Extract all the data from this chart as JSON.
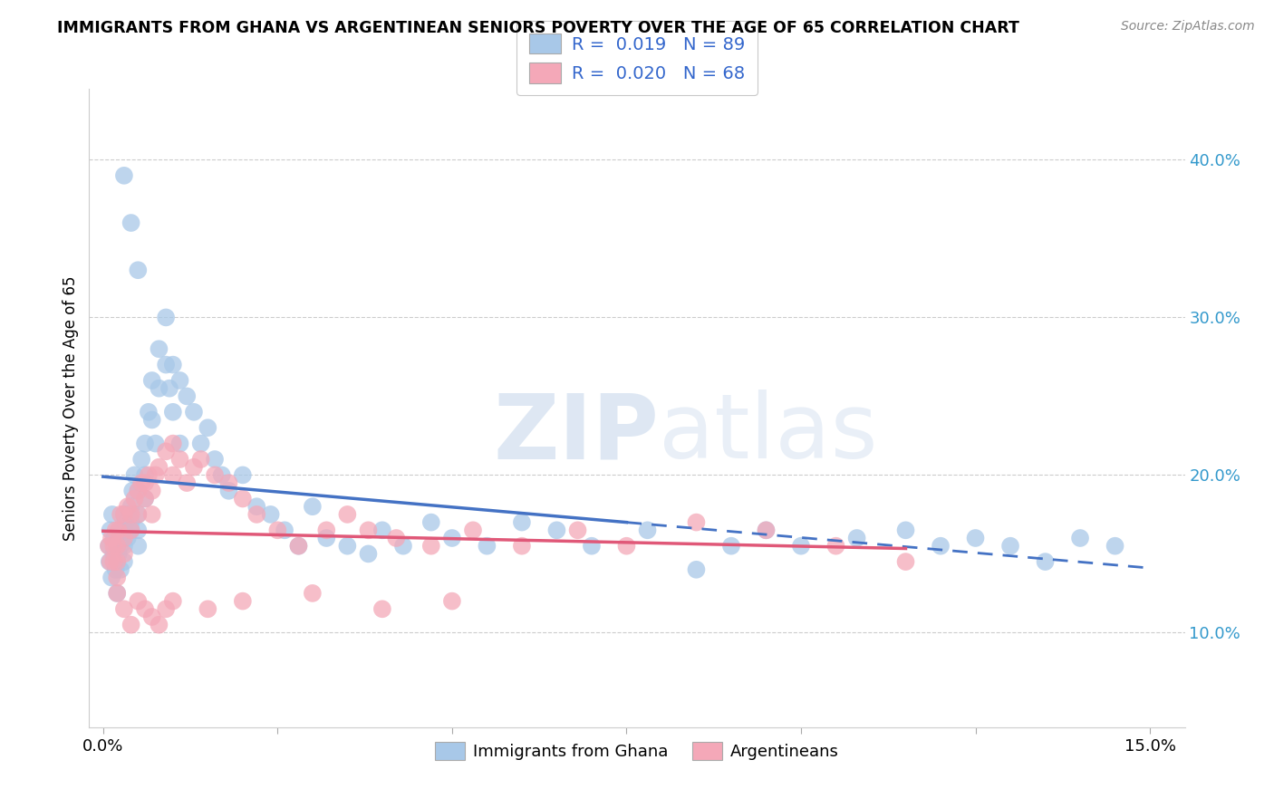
{
  "title": "IMMIGRANTS FROM GHANA VS ARGENTINEAN SENIORS POVERTY OVER THE AGE OF 65 CORRELATION CHART",
  "source": "Source: ZipAtlas.com",
  "ylabel": "Seniors Poverty Over the Age of 65",
  "yticks": [
    0.1,
    0.2,
    0.3,
    0.4
  ],
  "ytick_labels": [
    "10.0%",
    "20.0%",
    "30.0%",
    "40.0%"
  ],
  "xticks": [
    0.0,
    0.025,
    0.05,
    0.075,
    0.1,
    0.125,
    0.15
  ],
  "xtick_labels": [
    "0.0%",
    "",
    "",
    "",
    "",
    "",
    "15.0%"
  ],
  "xlim": [
    -0.002,
    0.155
  ],
  "ylim": [
    0.04,
    0.445
  ],
  "ghana_R": "0.019",
  "ghana_N": "89",
  "arg_R": "0.020",
  "arg_N": "68",
  "ghana_color": "#a8c8e8",
  "arg_color": "#f4a8b8",
  "ghana_line_color": "#4472c4",
  "arg_line_color": "#e05878",
  "watermark_zip": "ZIP",
  "watermark_atlas": "atlas",
  "legend_label_ghana": "Immigrants from Ghana",
  "legend_label_arg": "Argentineans",
  "ghana_x": [
    0.0008,
    0.0009,
    0.001,
    0.0012,
    0.0013,
    0.0015,
    0.0016,
    0.0018,
    0.002,
    0.002,
    0.002,
    0.0022,
    0.0023,
    0.0025,
    0.0025,
    0.0028,
    0.003,
    0.003,
    0.003,
    0.003,
    0.0032,
    0.0035,
    0.0035,
    0.004,
    0.004,
    0.004,
    0.0042,
    0.0045,
    0.005,
    0.005,
    0.005,
    0.005,
    0.0055,
    0.006,
    0.006,
    0.006,
    0.0065,
    0.007,
    0.007,
    0.0075,
    0.008,
    0.008,
    0.009,
    0.009,
    0.0095,
    0.01,
    0.01,
    0.011,
    0.011,
    0.012,
    0.013,
    0.014,
    0.015,
    0.016,
    0.017,
    0.018,
    0.02,
    0.022,
    0.024,
    0.026,
    0.028,
    0.03,
    0.032,
    0.035,
    0.038,
    0.04,
    0.043,
    0.047,
    0.05,
    0.055,
    0.06,
    0.065,
    0.07,
    0.078,
    0.085,
    0.09,
    0.095,
    0.1,
    0.108,
    0.115,
    0.12,
    0.125,
    0.13,
    0.135,
    0.14,
    0.145,
    0.003,
    0.004,
    0.005
  ],
  "ghana_y": [
    0.155,
    0.145,
    0.165,
    0.135,
    0.175,
    0.15,
    0.16,
    0.14,
    0.155,
    0.145,
    0.125,
    0.15,
    0.165,
    0.155,
    0.14,
    0.16,
    0.175,
    0.165,
    0.155,
    0.145,
    0.17,
    0.16,
    0.175,
    0.18,
    0.17,
    0.165,
    0.19,
    0.2,
    0.19,
    0.175,
    0.165,
    0.155,
    0.21,
    0.22,
    0.2,
    0.185,
    0.24,
    0.26,
    0.235,
    0.22,
    0.28,
    0.255,
    0.3,
    0.27,
    0.255,
    0.27,
    0.24,
    0.26,
    0.22,
    0.25,
    0.24,
    0.22,
    0.23,
    0.21,
    0.2,
    0.19,
    0.2,
    0.18,
    0.175,
    0.165,
    0.155,
    0.18,
    0.16,
    0.155,
    0.15,
    0.165,
    0.155,
    0.17,
    0.16,
    0.155,
    0.17,
    0.165,
    0.155,
    0.165,
    0.14,
    0.155,
    0.165,
    0.155,
    0.16,
    0.165,
    0.155,
    0.16,
    0.155,
    0.145,
    0.16,
    0.155,
    0.39,
    0.36,
    0.33
  ],
  "arg_x": [
    0.0008,
    0.001,
    0.0012,
    0.0015,
    0.0015,
    0.0018,
    0.002,
    0.002,
    0.002,
    0.0022,
    0.0025,
    0.003,
    0.003,
    0.003,
    0.0035,
    0.004,
    0.004,
    0.0045,
    0.005,
    0.005,
    0.0055,
    0.006,
    0.006,
    0.0065,
    0.007,
    0.007,
    0.0075,
    0.008,
    0.009,
    0.01,
    0.01,
    0.011,
    0.012,
    0.013,
    0.014,
    0.016,
    0.018,
    0.02,
    0.022,
    0.025,
    0.028,
    0.032,
    0.035,
    0.038,
    0.042,
    0.047,
    0.053,
    0.06,
    0.068,
    0.075,
    0.085,
    0.095,
    0.105,
    0.115,
    0.002,
    0.003,
    0.004,
    0.005,
    0.006,
    0.007,
    0.008,
    0.009,
    0.01,
    0.015,
    0.02,
    0.03,
    0.04,
    0.05
  ],
  "arg_y": [
    0.155,
    0.145,
    0.16,
    0.155,
    0.145,
    0.165,
    0.155,
    0.145,
    0.135,
    0.165,
    0.175,
    0.16,
    0.175,
    0.15,
    0.18,
    0.175,
    0.165,
    0.185,
    0.19,
    0.175,
    0.195,
    0.185,
    0.195,
    0.2,
    0.19,
    0.175,
    0.2,
    0.205,
    0.215,
    0.22,
    0.2,
    0.21,
    0.195,
    0.205,
    0.21,
    0.2,
    0.195,
    0.185,
    0.175,
    0.165,
    0.155,
    0.165,
    0.175,
    0.165,
    0.16,
    0.155,
    0.165,
    0.155,
    0.165,
    0.155,
    0.17,
    0.165,
    0.155,
    0.145,
    0.125,
    0.115,
    0.105,
    0.12,
    0.115,
    0.11,
    0.105,
    0.115,
    0.12,
    0.115,
    0.12,
    0.125,
    0.115,
    0.12
  ]
}
